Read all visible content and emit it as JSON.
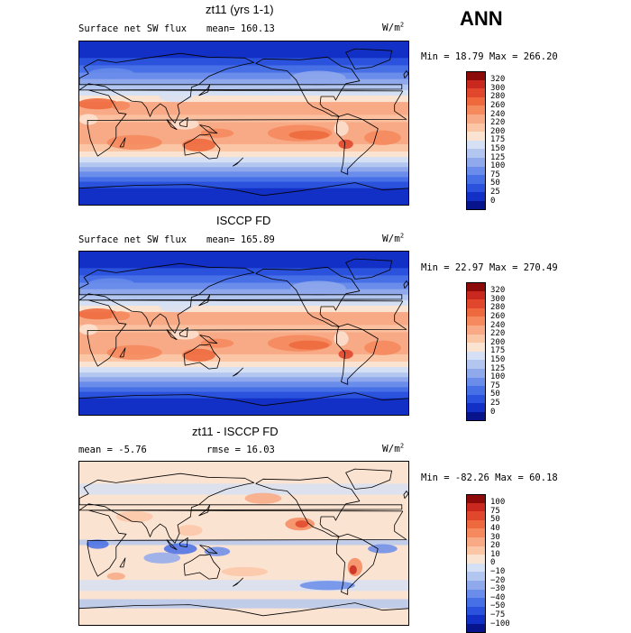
{
  "header": {
    "season": "ANN"
  },
  "panels": [
    {
      "title": "zt11 (yrs 1-1)",
      "left_label": "Surface net SW flux",
      "right_label": "mean= 160.13",
      "units_base": "W/m",
      "units_exp": "2",
      "minmax": "Min =  18.79 Max = 266.20",
      "colorbar": {
        "labels": [
          "320",
          "300",
          "280",
          "260",
          "240",
          "220",
          "200",
          "175",
          "150",
          "125",
          "100",
          "75",
          "50",
          "25",
          "0"
        ],
        "colors": [
          "#8c0a0a",
          "#c8281e",
          "#e0472c",
          "#ee6a3e",
          "#f58a5e",
          "#f8a985",
          "#fbc6a6",
          "#fbe3d2",
          "#d6e0f4",
          "#b3c6ef",
          "#8fa9ec",
          "#6a8cea",
          "#476fe6",
          "#2a52dc",
          "#1230c6",
          "#08148c"
        ]
      },
      "pattern": "mean"
    },
    {
      "title": "ISCCP FD",
      "left_label": "Surface net SW flux",
      "right_label": "mean= 165.89",
      "units_base": "W/m",
      "units_exp": "2",
      "minmax": "Min =  22.97 Max = 270.49",
      "colorbar": {
        "labels": [
          "320",
          "300",
          "280",
          "260",
          "240",
          "220",
          "200",
          "175",
          "150",
          "125",
          "100",
          "75",
          "50",
          "25",
          "0"
        ],
        "colors": [
          "#8c0a0a",
          "#c8281e",
          "#e0472c",
          "#ee6a3e",
          "#f58a5e",
          "#f8a985",
          "#fbc6a6",
          "#fbe3d2",
          "#d6e0f4",
          "#b3c6ef",
          "#8fa9ec",
          "#6a8cea",
          "#476fe6",
          "#2a52dc",
          "#1230c6",
          "#08148c"
        ]
      },
      "pattern": "mean"
    },
    {
      "title": "zt11 - ISCCP FD",
      "left_label": "mean =   -5.76",
      "right_label": "rmse =  16.03",
      "units_base": "W/m",
      "units_exp": "2",
      "minmax": "Min = -82.26 Max =  60.18",
      "colorbar": {
        "labels": [
          "100",
          "75",
          "50",
          "40",
          "30",
          "20",
          "10",
          "0",
          "−10",
          "−20",
          "−30",
          "−40",
          "−50",
          "−75",
          "−100"
        ],
        "colors": [
          "#8c0a0a",
          "#c8281e",
          "#e0472c",
          "#ee6a3e",
          "#f58a5e",
          "#f8a985",
          "#fbc6a6",
          "#fbe3d2",
          "#d6e0f4",
          "#b3c6ef",
          "#8fa9ec",
          "#6a8cea",
          "#476fe6",
          "#2a52dc",
          "#1230c6",
          "#08148c"
        ]
      },
      "pattern": "diff"
    }
  ]
}
